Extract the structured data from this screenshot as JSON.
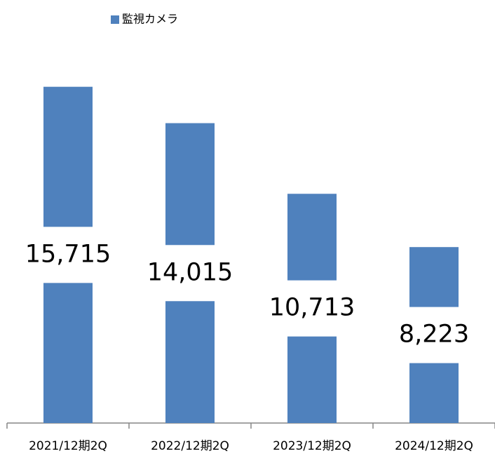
{
  "chart_data": {
    "type": "bar",
    "series": [
      {
        "name": "監視カメラ",
        "color": "#4f81bd",
        "values": [
          15715,
          14015,
          10713,
          8223
        ],
        "value_labels": [
          "15,715",
          "14,015",
          "10,713",
          "8,223"
        ]
      }
    ],
    "categories": [
      "2021/12期2Q",
      "2022/12期2Q",
      "2023/12期2Q",
      "2024/12期2Q"
    ],
    "ylim": [
      0,
      18000
    ]
  }
}
